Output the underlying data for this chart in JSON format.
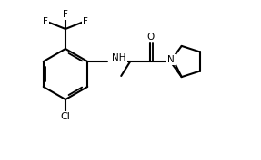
{
  "bg_color": "#ffffff",
  "line_color": "#000000",
  "atom_colors": {
    "F": "#000000",
    "Cl": "#000000",
    "N": "#000000",
    "O": "#000000",
    "C": "#000000"
  },
  "line_width": 1.5,
  "font_size": 7.5
}
